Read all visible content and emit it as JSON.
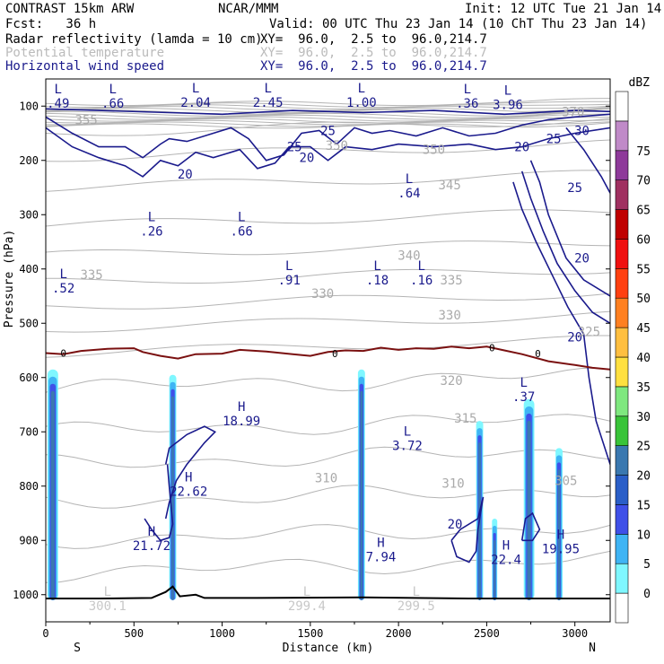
{
  "header": {
    "model": "CONTRAST 15km ARW",
    "center": "NCAR/MMM",
    "init": "Init: 12 UTC Tue 21 Jan 14",
    "fcst": "Fcst:   36 h",
    "valid": "Valid: 00 UTC Thu 23 Jan 14 (10 ChT Thu 23 Jan 14)",
    "fields": [
      {
        "name": "Radar reflectivity (lamda = 10 cm)",
        "xy": "XY=  96.0,  2.5 to  96.0,214.7",
        "color": "#000000"
      },
      {
        "name": "Potential temperature",
        "xy": "XY=  96.0,  2.5 to  96.0,214.7",
        "color": "#bbbbbb"
      },
      {
        "name": "Horizontal wind speed",
        "xy": "XY=  96.0,  2.5 to  96.0,214.7",
        "color": "#1a1a8c"
      }
    ]
  },
  "chart_data": {
    "type": "cross-section",
    "xlabel": "Distance (km)",
    "ylabel": "Pressure (hPa)",
    "xlim": [
      0,
      3200
    ],
    "ylim": [
      1050,
      50
    ],
    "x_ticks": [
      0,
      500,
      1000,
      1500,
      2000,
      2500,
      3000
    ],
    "y_ticks": [
      100,
      200,
      300,
      400,
      500,
      600,
      700,
      800,
      900,
      1000
    ],
    "x_end_labels": {
      "left": "S",
      "right": "N"
    },
    "colorbar": {
      "unit": "dBZ",
      "levels": [
        0,
        5,
        10,
        15,
        20,
        25,
        30,
        35,
        40,
        45,
        50,
        55,
        60,
        65,
        70,
        75
      ],
      "colors": [
        "#ffffff",
        "#7ff7ff",
        "#3fb4f4",
        "#3f50e8",
        "#2a5ec8",
        "#3a78b0",
        "#39c439",
        "#7fe87f",
        "#ffe040",
        "#ffbf40",
        "#ff8020",
        "#ff4010",
        "#f01010",
        "#c00000",
        "#a03060",
        "#8e3a9a",
        "#c08ac8",
        "#ffffff"
      ]
    },
    "freezing_level": {
      "label": "0",
      "points": [
        [
          0,
          555
        ],
        [
          100,
          557
        ],
        [
          200,
          551
        ],
        [
          350,
          547
        ],
        [
          500,
          546
        ],
        [
          550,
          553
        ],
        [
          650,
          560
        ],
        [
          750,
          565
        ],
        [
          850,
          557
        ],
        [
          1000,
          556
        ],
        [
          1100,
          549
        ],
        [
          1250,
          552
        ],
        [
          1400,
          557
        ],
        [
          1500,
          560
        ],
        [
          1600,
          553
        ],
        [
          1700,
          550
        ],
        [
          1800,
          551
        ],
        [
          1900,
          545
        ],
        [
          2000,
          549
        ],
        [
          2100,
          546
        ],
        [
          2200,
          547
        ],
        [
          2300,
          543
        ],
        [
          2400,
          546
        ],
        [
          2500,
          543
        ],
        [
          2600,
          550
        ],
        [
          2700,
          557
        ],
        [
          2850,
          570
        ],
        [
          3000,
          577
        ],
        [
          3100,
          582
        ],
        [
          3200,
          585
        ]
      ]
    },
    "reflectivity_columns": [
      {
        "x": [
          10,
          70
        ],
        "top": 585,
        "bottom": 1010
      },
      {
        "x": [
          700,
          740
        ],
        "top": 595,
        "bottom": 1010
      },
      {
        "x": [
          1770,
          1810
        ],
        "top": 585,
        "bottom": 1010
      },
      {
        "x": [
          2440,
          2480
        ],
        "top": 680,
        "bottom": 1010
      },
      {
        "x": [
          2530,
          2560
        ],
        "top": 860,
        "bottom": 1010
      },
      {
        "x": [
          2710,
          2770
        ],
        "top": 640,
        "bottom": 1010
      },
      {
        "x": [
          2890,
          2930
        ],
        "top": 730,
        "bottom": 1010
      }
    ],
    "wind_contour_labels": [
      "20",
      "25",
      "25",
      "20",
      "30",
      "25",
      "20",
      "25",
      "20",
      "20"
    ],
    "theta_labels": [
      "355",
      "350",
      "350",
      "345",
      "340",
      "335",
      "335",
      "330",
      "330",
      "325",
      "320",
      "315",
      "310",
      "310",
      "305",
      "370"
    ],
    "extrema": [
      {
        "type": "L",
        "value": ".49"
      },
      {
        "type": "L",
        "value": ".66"
      },
      {
        "type": "L",
        "value": "2.04"
      },
      {
        "type": "L",
        "value": "2.45"
      },
      {
        "type": "L",
        "value": "1.00"
      },
      {
        "type": "L",
        "value": ".36"
      },
      {
        "type": "L",
        "value": "3.96"
      },
      {
        "type": "L",
        "value": ".64"
      },
      {
        "type": "L",
        "value": ".26"
      },
      {
        "type": "L",
        "value": ".66"
      },
      {
        "type": "L",
        "value": ".52"
      },
      {
        "type": "L",
        "value": ".91"
      },
      {
        "type": "L",
        "value": ".18"
      },
      {
        "type": "L",
        "value": ".16"
      },
      {
        "type": "L",
        "value": ".37"
      },
      {
        "type": "H",
        "value": "18.99"
      },
      {
        "type": "L",
        "value": "3.72"
      },
      {
        "type": "H",
        "value": "22.62"
      },
      {
        "type": "H",
        "value": "21.72"
      },
      {
        "type": "H",
        "value": "7.94"
      },
      {
        "type": "H",
        "value": "22.4"
      },
      {
        "type": "H",
        "value": "19.95"
      },
      {
        "type": "L",
        "value": "300.1"
      },
      {
        "type": "L",
        "value": "299.4"
      },
      {
        "type": "L",
        "value": "299.5"
      }
    ]
  }
}
